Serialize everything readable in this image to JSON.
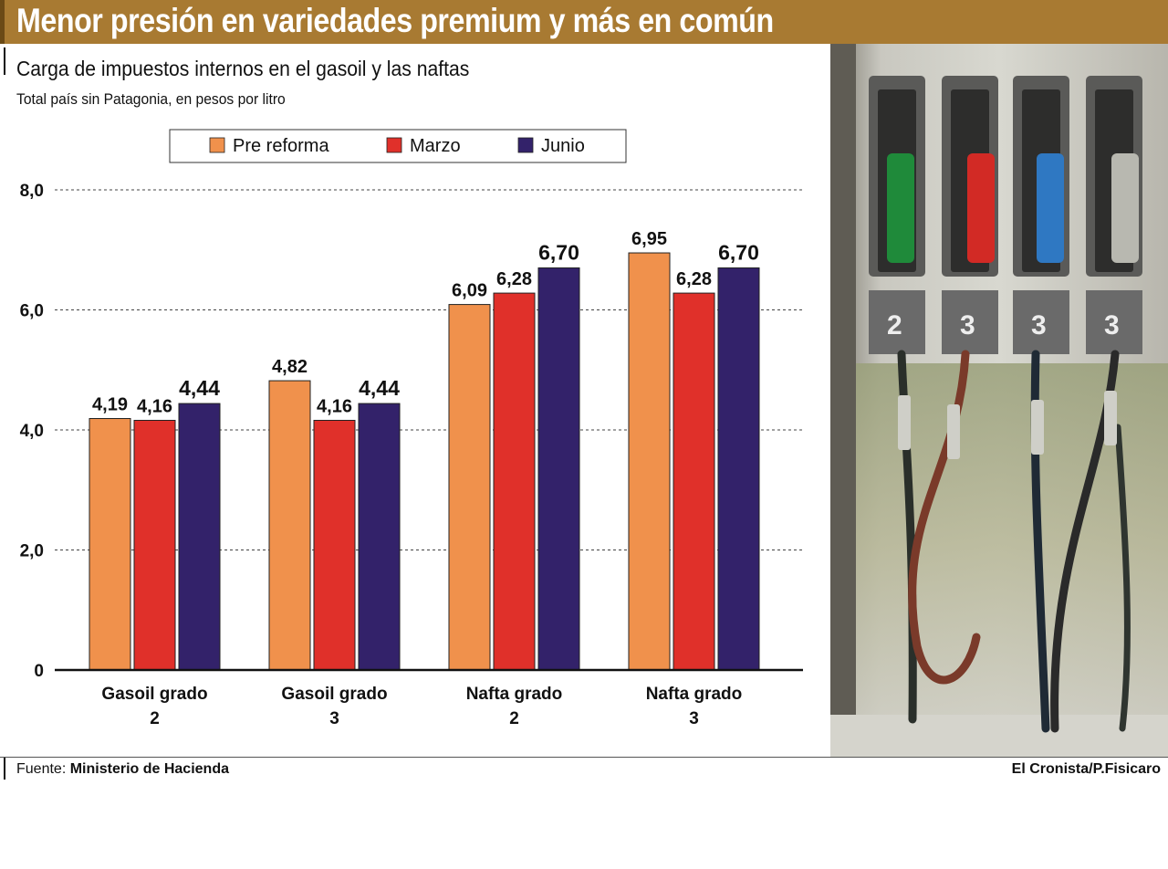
{
  "headline": "Menor presión en variedades premium y más en común",
  "subtitle": "Carga de impuestos internos en el gasoil y las naftas",
  "unit_note": "Total país sin Patagonia, en pesos por litro",
  "source": {
    "label": "Fuente:",
    "value": "Ministerio de Hacienda"
  },
  "credit": "El Cronista/P.Fisicaro",
  "colors": {
    "header": "#a87a32",
    "pre_reforma": "#f0914c",
    "marzo": "#e0302a",
    "junio": "#33226a"
  },
  "photo": {
    "subject": "fuel-pump-nozzles-photo",
    "pump_labels": [
      "2",
      "3",
      "3",
      "3"
    ]
  },
  "chart_data": {
    "type": "bar",
    "categories": [
      [
        "Gasoil grado",
        "2"
      ],
      [
        "Gasoil grado",
        "3"
      ],
      [
        "Nafta grado",
        "2"
      ],
      [
        "Nafta grado",
        "3"
      ]
    ],
    "series": [
      {
        "name": "Pre reforma",
        "values": [
          4.19,
          4.82,
          6.09,
          6.95
        ],
        "labels": [
          "4,19",
          "4,82",
          "6,09",
          "6,95"
        ],
        "bold": false
      },
      {
        "name": "Marzo",
        "values": [
          4.16,
          4.16,
          6.28,
          6.28
        ],
        "labels": [
          "4,16",
          "4,16",
          "6,28",
          "6,28"
        ],
        "bold": false
      },
      {
        "name": "Junio",
        "values": [
          4.44,
          4.44,
          6.7,
          6.7
        ],
        "labels": [
          "4,44",
          "4,44",
          "6,70",
          "6,70"
        ],
        "bold": true
      }
    ],
    "yticks": [
      0,
      2,
      4,
      6,
      8
    ],
    "ytick_labels": [
      "0",
      "2,0",
      "4,0",
      "6,0",
      "8,0"
    ],
    "ylim": [
      0,
      8
    ],
    "grid": true,
    "legend_position": "top"
  }
}
